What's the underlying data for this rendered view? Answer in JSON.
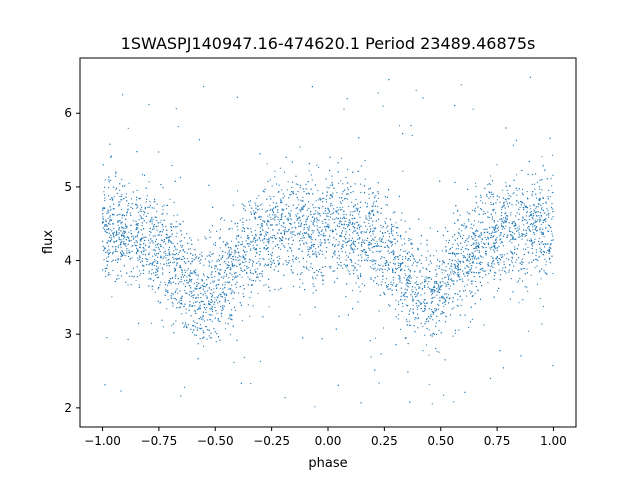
{
  "chart_data": {
    "type": "scatter",
    "title": "1SWASPJ140947.16-474620.1 Period 23489.46875s",
    "xlabel": "phase",
    "ylabel": "flux",
    "xlim": [
      -1.1,
      1.1
    ],
    "ylim": [
      1.74,
      6.75
    ],
    "xticks": [
      -1.0,
      -0.75,
      -0.5,
      -0.25,
      0.0,
      0.25,
      0.5,
      0.75,
      1.0
    ],
    "xtick_labels": [
      "−1.00",
      "−0.75",
      "−0.50",
      "−0.25",
      "0.00",
      "0.25",
      "0.50",
      "0.75",
      "1.00"
    ],
    "yticks": [
      2,
      3,
      4,
      5,
      6
    ],
    "ytick_labels": [
      "2",
      "3",
      "4",
      "5",
      "6"
    ],
    "grid": false,
    "point_color": "#1f77b4",
    "mean_curve": {
      "x": [
        -1.0,
        -0.9,
        -0.8,
        -0.7,
        -0.6,
        -0.55,
        -0.5,
        -0.4,
        -0.3,
        -0.2,
        -0.1,
        0.0,
        0.1,
        0.2,
        0.3,
        0.4,
        0.45,
        0.5,
        0.6,
        0.7,
        0.8,
        0.9,
        1.0
      ],
      "y": [
        4.4,
        4.4,
        4.3,
        4.05,
        3.6,
        3.45,
        3.6,
        4.0,
        4.3,
        4.45,
        4.45,
        4.4,
        4.35,
        4.3,
        4.05,
        3.6,
        3.45,
        3.6,
        4.0,
        4.3,
        4.4,
        4.45,
        4.45
      ]
    },
    "scatter_spread": 0.35
  }
}
